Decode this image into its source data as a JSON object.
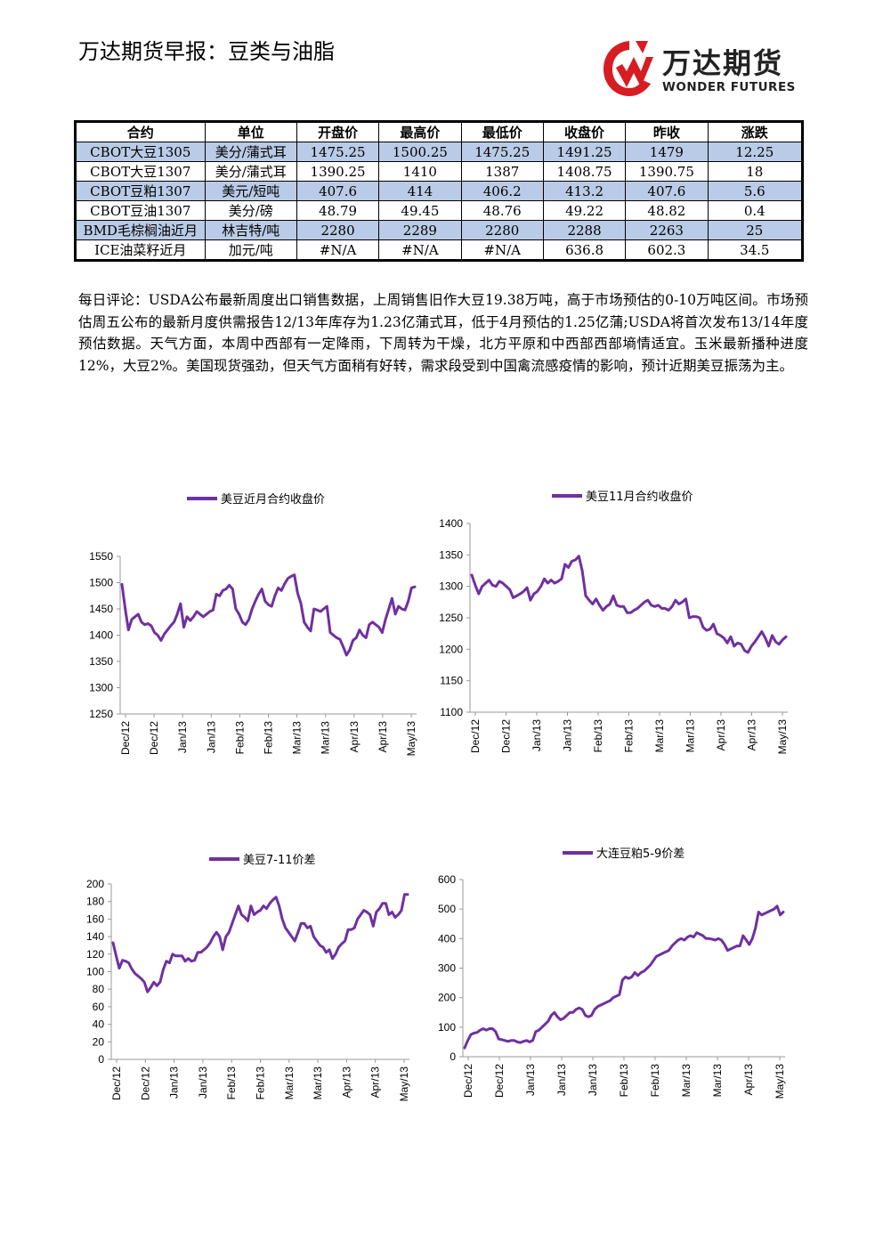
{
  "header": {
    "title": "万达期货早报：豆类与油脂",
    "logo_cn": "万达期货",
    "logo_en": "WONDER FUTURES",
    "logo_color": "#d71c24"
  },
  "table": {
    "columns": [
      "合约",
      "单位",
      "开盘价",
      "最高价",
      "最低价",
      "收盘价",
      "昨收",
      "涨跌"
    ],
    "rows": [
      [
        "CBOT大豆1305",
        "美分/蒲式耳",
        "1475.25",
        "1500.25",
        "1475.25",
        "1491.25",
        "1479",
        "12.25"
      ],
      [
        "CBOT大豆1307",
        "美分/蒲式耳",
        "1390.25",
        "1410",
        "1387",
        "1408.75",
        "1390.75",
        "18"
      ],
      [
        "CBOT豆粕1307",
        "美元/短吨",
        "407.6",
        "414",
        "406.2",
        "413.2",
        "407.6",
        "5.6"
      ],
      [
        "CBOT豆油1307",
        "美分/磅",
        "48.79",
        "49.45",
        "48.76",
        "49.22",
        "48.82",
        "0.4"
      ],
      [
        "BMD毛棕榈油近月",
        "林吉特/吨",
        "2280",
        "2289",
        "2280",
        "2288",
        "2263",
        "25"
      ],
      [
        "ICE油菜籽近月",
        "加元/吨",
        "#N/A",
        "#N/A",
        "#N/A",
        "636.8",
        "602.3",
        "34.5"
      ]
    ],
    "shade_color": "#b9cbe6"
  },
  "comment": "每日评论：USDA公布最新周度出口销售数据，上周销售旧作大豆19.38万吨，高于市场预估的0-10万吨区间。市场预估周五公布的最新月度供需报告12/13年库存为1.23亿蒲式耳，低于4月预估的1.25亿蒲;USDA将首次发布13/14年度预估数据。天气方面，本周中西部有一定降雨，下周转为干燥，北方平原和中西部西部墒情适宜。玉米最新播种进度12%，大豆2%。美国现货强劲，但天气方面稍有好转，需求段受到中国禽流感疫情的影响，预计近期美豆振荡为主。",
  "chart_data": [
    {
      "type": "line",
      "series_name": "美豆近月合约收盘价",
      "color": "#7030a0",
      "ylim": [
        1250,
        1550
      ],
      "yticks": [
        1250,
        1300,
        1350,
        1400,
        1450,
        1500,
        1550
      ],
      "xticks": [
        "Dec/12",
        "Dec/12",
        "Jan/13",
        "Jan/13",
        "Feb/13",
        "Feb/13",
        "Mar/13",
        "Mar/13",
        "Apr/13",
        "Apr/13",
        "May/13"
      ],
      "values": [
        1497,
        1450,
        1410,
        1430,
        1435,
        1440,
        1425,
        1420,
        1422,
        1418,
        1405,
        1400,
        1390,
        1402,
        1410,
        1418,
        1425,
        1440,
        1460,
        1415,
        1435,
        1428,
        1435,
        1445,
        1440,
        1435,
        1440,
        1445,
        1448,
        1478,
        1475,
        1485,
        1488,
        1495,
        1488,
        1450,
        1440,
        1425,
        1420,
        1430,
        1450,
        1465,
        1478,
        1488,
        1465,
        1458,
        1455,
        1475,
        1490,
        1485,
        1498,
        1508,
        1512,
        1515,
        1480,
        1460,
        1425,
        1415,
        1408,
        1450,
        1448,
        1445,
        1450,
        1455,
        1405,
        1400,
        1395,
        1392,
        1378,
        1362,
        1372,
        1390,
        1395,
        1410,
        1400,
        1395,
        1420,
        1425,
        1420,
        1415,
        1405,
        1430,
        1450,
        1470,
        1440,
        1455,
        1450,
        1448,
        1465,
        1490,
        1492
      ]
    },
    {
      "type": "line",
      "series_name": "美豆11月合约收盘价",
      "color": "#7030a0",
      "ylim": [
        1100,
        1400
      ],
      "yticks": [
        1100,
        1150,
        1200,
        1250,
        1300,
        1350,
        1400
      ],
      "xticks": [
        "Dec/12",
        "Dec/12",
        "Jan/13",
        "Jan/13",
        "Feb/13",
        "Feb/13",
        "Mar/13",
        "Mar/13",
        "Apr/13",
        "Apr/13",
        "May/13"
      ],
      "values": [
        1318,
        1302,
        1288,
        1300,
        1305,
        1310,
        1302,
        1300,
        1308,
        1305,
        1300,
        1295,
        1282,
        1285,
        1288,
        1292,
        1298,
        1278,
        1288,
        1292,
        1300,
        1312,
        1305,
        1310,
        1305,
        1308,
        1312,
        1335,
        1330,
        1340,
        1342,
        1348,
        1325,
        1285,
        1278,
        1272,
        1280,
        1270,
        1262,
        1268,
        1272,
        1285,
        1270,
        1268,
        1268,
        1258,
        1258,
        1262,
        1265,
        1270,
        1275,
        1278,
        1270,
        1268,
        1270,
        1265,
        1265,
        1262,
        1268,
        1278,
        1272,
        1275,
        1280,
        1250,
        1252,
        1252,
        1250,
        1235,
        1230,
        1232,
        1240,
        1225,
        1222,
        1218,
        1210,
        1220,
        1205,
        1210,
        1208,
        1198,
        1195,
        1205,
        1212,
        1220,
        1228,
        1218,
        1205,
        1222,
        1212,
        1208,
        1215,
        1220
      ]
    },
    {
      "type": "line",
      "series_name": "美豆7-11价差",
      "color": "#7030a0",
      "ylim": [
        0,
        200
      ],
      "yticks": [
        0,
        20,
        40,
        60,
        80,
        100,
        120,
        140,
        160,
        180,
        200
      ],
      "xticks": [
        "Dec/12",
        "Dec/12",
        "Jan/13",
        "Jan/13",
        "Feb/13",
        "Feb/13",
        "Mar/13",
        "Mar/13",
        "Apr/13",
        "Apr/13",
        "May/13"
      ],
      "values": [
        133,
        118,
        104,
        113,
        112,
        110,
        103,
        98,
        95,
        92,
        88,
        77,
        82,
        88,
        84,
        88,
        102,
        112,
        110,
        120,
        118,
        118,
        118,
        112,
        115,
        112,
        113,
        122,
        122,
        125,
        128,
        133,
        140,
        145,
        140,
        125,
        140,
        145,
        155,
        165,
        175,
        165,
        162,
        158,
        175,
        165,
        168,
        170,
        175,
        172,
        178,
        182,
        185,
        175,
        160,
        150,
        145,
        140,
        135,
        145,
        155,
        155,
        150,
        152,
        140,
        135,
        130,
        128,
        122,
        125,
        115,
        120,
        128,
        132,
        135,
        148,
        148,
        150,
        160,
        165,
        170,
        168,
        165,
        152,
        168,
        172,
        178,
        178,
        165,
        168,
        162,
        165,
        170,
        188,
        188
      ]
    },
    {
      "type": "line",
      "series_name": "大连豆粕5-9价差",
      "color": "#7030a0",
      "ylim": [
        0,
        600
      ],
      "yticks": [
        0,
        100,
        200,
        300,
        400,
        500,
        600
      ],
      "xticks": [
        "Dec/12",
        "Dec/12",
        "Jan/13",
        "Jan/13",
        "Jan/13",
        "Feb/13",
        "Feb/13",
        "Mar/13",
        "Mar/13",
        "Apr/13",
        "May/13"
      ],
      "values": [
        30,
        55,
        75,
        80,
        82,
        90,
        95,
        90,
        95,
        95,
        85,
        60,
        58,
        55,
        52,
        55,
        55,
        50,
        48,
        52,
        55,
        50,
        55,
        85,
        90,
        100,
        110,
        120,
        140,
        150,
        135,
        125,
        130,
        140,
        150,
        150,
        160,
        165,
        160,
        140,
        135,
        140,
        160,
        170,
        175,
        180,
        185,
        190,
        200,
        205,
        210,
        260,
        270,
        265,
        270,
        285,
        275,
        285,
        290,
        300,
        310,
        325,
        340,
        345,
        350,
        355,
        360,
        375,
        385,
        395,
        400,
        395,
        405,
        410,
        405,
        420,
        415,
        410,
        400,
        400,
        398,
        395,
        400,
        395,
        380,
        360,
        365,
        370,
        375,
        375,
        410,
        395,
        380,
        400,
        435,
        490,
        480,
        485,
        490,
        495,
        500,
        510,
        480,
        490
      ]
    }
  ]
}
